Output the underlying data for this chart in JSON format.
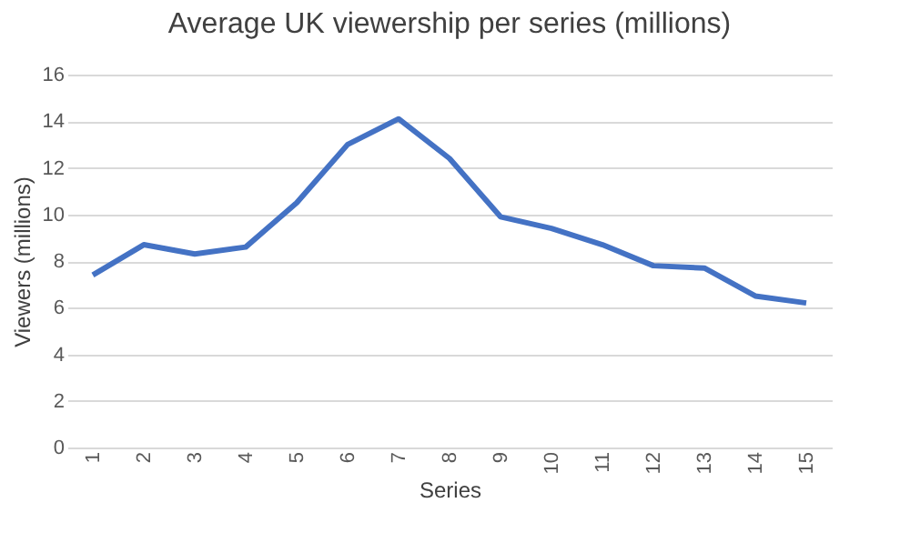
{
  "chart_data": {
    "type": "line",
    "title": "Average UK viewership per series (millions)",
    "xlabel": "Series",
    "ylabel": "Viewers (millions)",
    "categories": [
      "1",
      "2",
      "3",
      "4",
      "5",
      "6",
      "7",
      "8",
      "9",
      "10",
      "11",
      "12",
      "13",
      "14",
      "15"
    ],
    "series": [
      {
        "color": "#4472c4",
        "values": [
          7.4,
          8.7,
          8.3,
          8.6,
          10.5,
          13.0,
          14.1,
          12.4,
          9.9,
          9.4,
          8.7,
          7.8,
          7.7,
          6.5,
          6.2
        ]
      }
    ],
    "ylim": [
      0,
      16
    ],
    "yticks": [
      0,
      2,
      4,
      6,
      8,
      10,
      12,
      14,
      16
    ],
    "grid": "y",
    "legend": false,
    "marker": "none",
    "line_style": "solid"
  }
}
